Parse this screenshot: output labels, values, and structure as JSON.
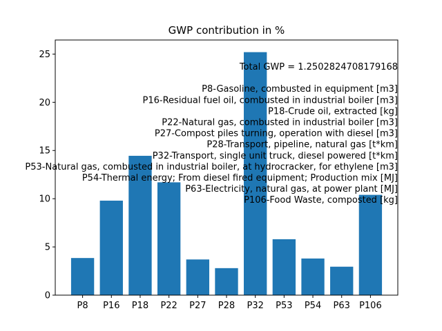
{
  "chart_data": {
    "type": "bar",
    "title": "GWP contribution in %",
    "categories": [
      "P8",
      "P16",
      "P18",
      "P22",
      "P27",
      "P28",
      "P32",
      "P53",
      "P54",
      "P63",
      "P106"
    ],
    "values": [
      3.85,
      9.8,
      14.45,
      11.7,
      3.7,
      2.8,
      25.2,
      5.8,
      3.8,
      2.95,
      10.4
    ],
    "bar_color": "#1f77b4",
    "ylim": [
      0,
      26.46
    ],
    "yticks": [
      0,
      5,
      10,
      15,
      20,
      25
    ],
    "xlabel": "",
    "ylabel": "",
    "grid": false,
    "annotation_lines": [
      "Total GWP = 1.2502824708179168",
      "",
      "P8-Gasoline, combusted in equipment [m3]",
      "P16-Residual fuel oil, combusted in industrial boiler [m3]",
      "P18-Crude oil, extracted [kg]",
      "P22-Natural gas, combusted in industrial boiler [m3]",
      "P27-Compost piles turning, operation with diesel [m3]",
      "P28-Transport, pipeline, natural gas [t*km]",
      "P32-Transport, single unit truck, diesel powered [t*km]",
      "P53-Natural gas, combusted in industrial boiler, at hydrocracker, for ethylene [m3]",
      "P54-Thermal energy; From diesel fired equipment; Production mix [MJ]",
      "P63-Electricity, natural gas, at power plant [MJ]",
      "P106-Food Waste, composted [kg]"
    ]
  }
}
